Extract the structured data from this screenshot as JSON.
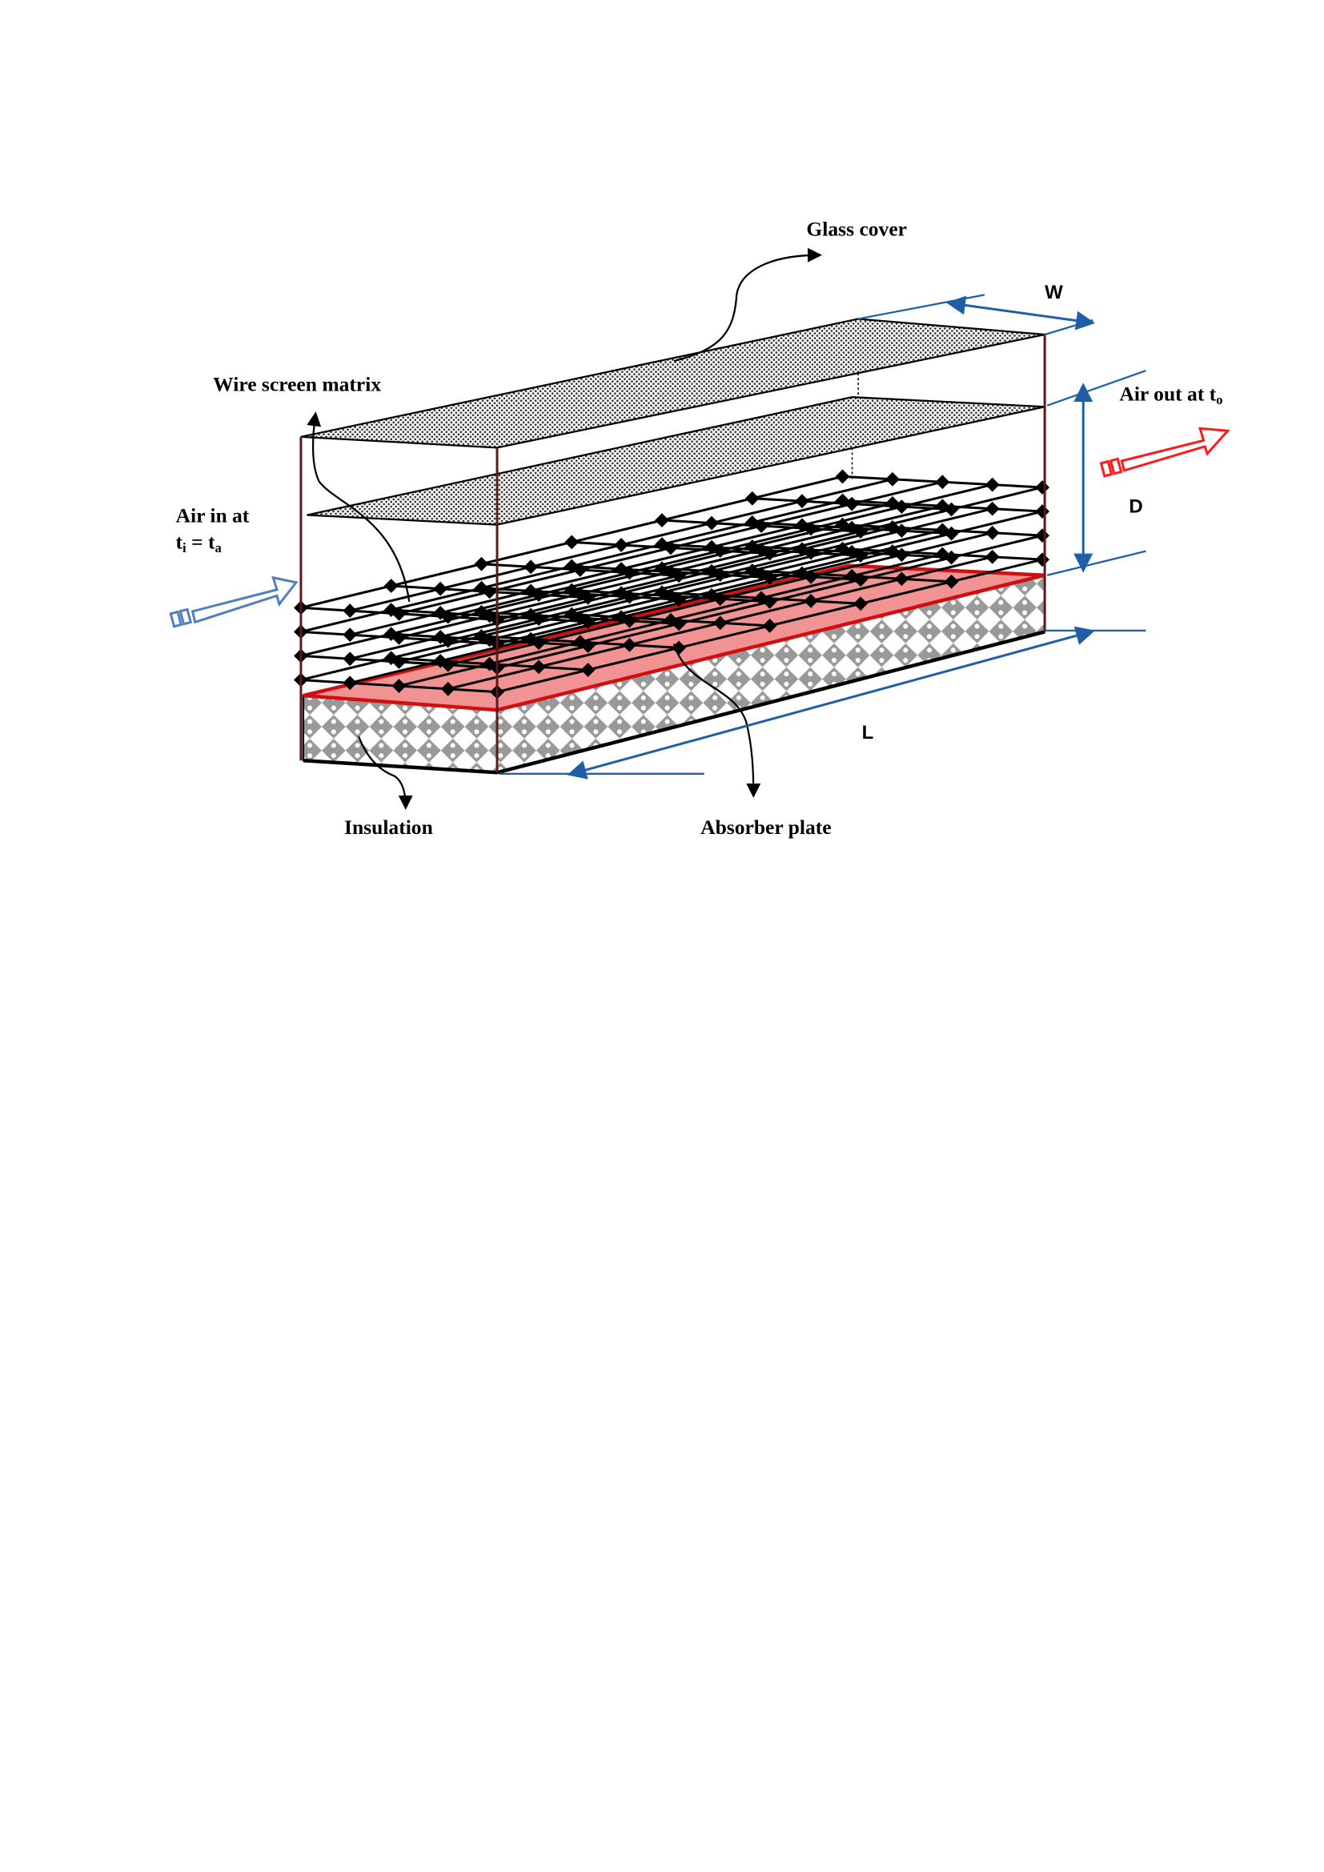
{
  "labels": {
    "glass_cover": "Glass cover",
    "wire_screen_matrix": "Wire screen matrix",
    "air_in_line1": "Air in at",
    "air_in_line2_t": "t",
    "air_in_line2_sub_i": "i",
    "air_in_line2_eq": " = t",
    "air_in_line2_sub_a": "a",
    "air_out": "Air out at t",
    "air_out_sub": "o",
    "insulation": "Insulation",
    "absorber_plate": "Absorber plate",
    "dim_w": "W",
    "dim_d": "D",
    "dim_l": "L"
  },
  "colors": {
    "inlet_arrow": "#4f7fc0",
    "outlet_arrow": "#ff1a1a",
    "dimension": "#1f5fa8",
    "absorber": "#f08080",
    "absorber_edge": "#d01010",
    "frame": "#5a1a1a"
  }
}
